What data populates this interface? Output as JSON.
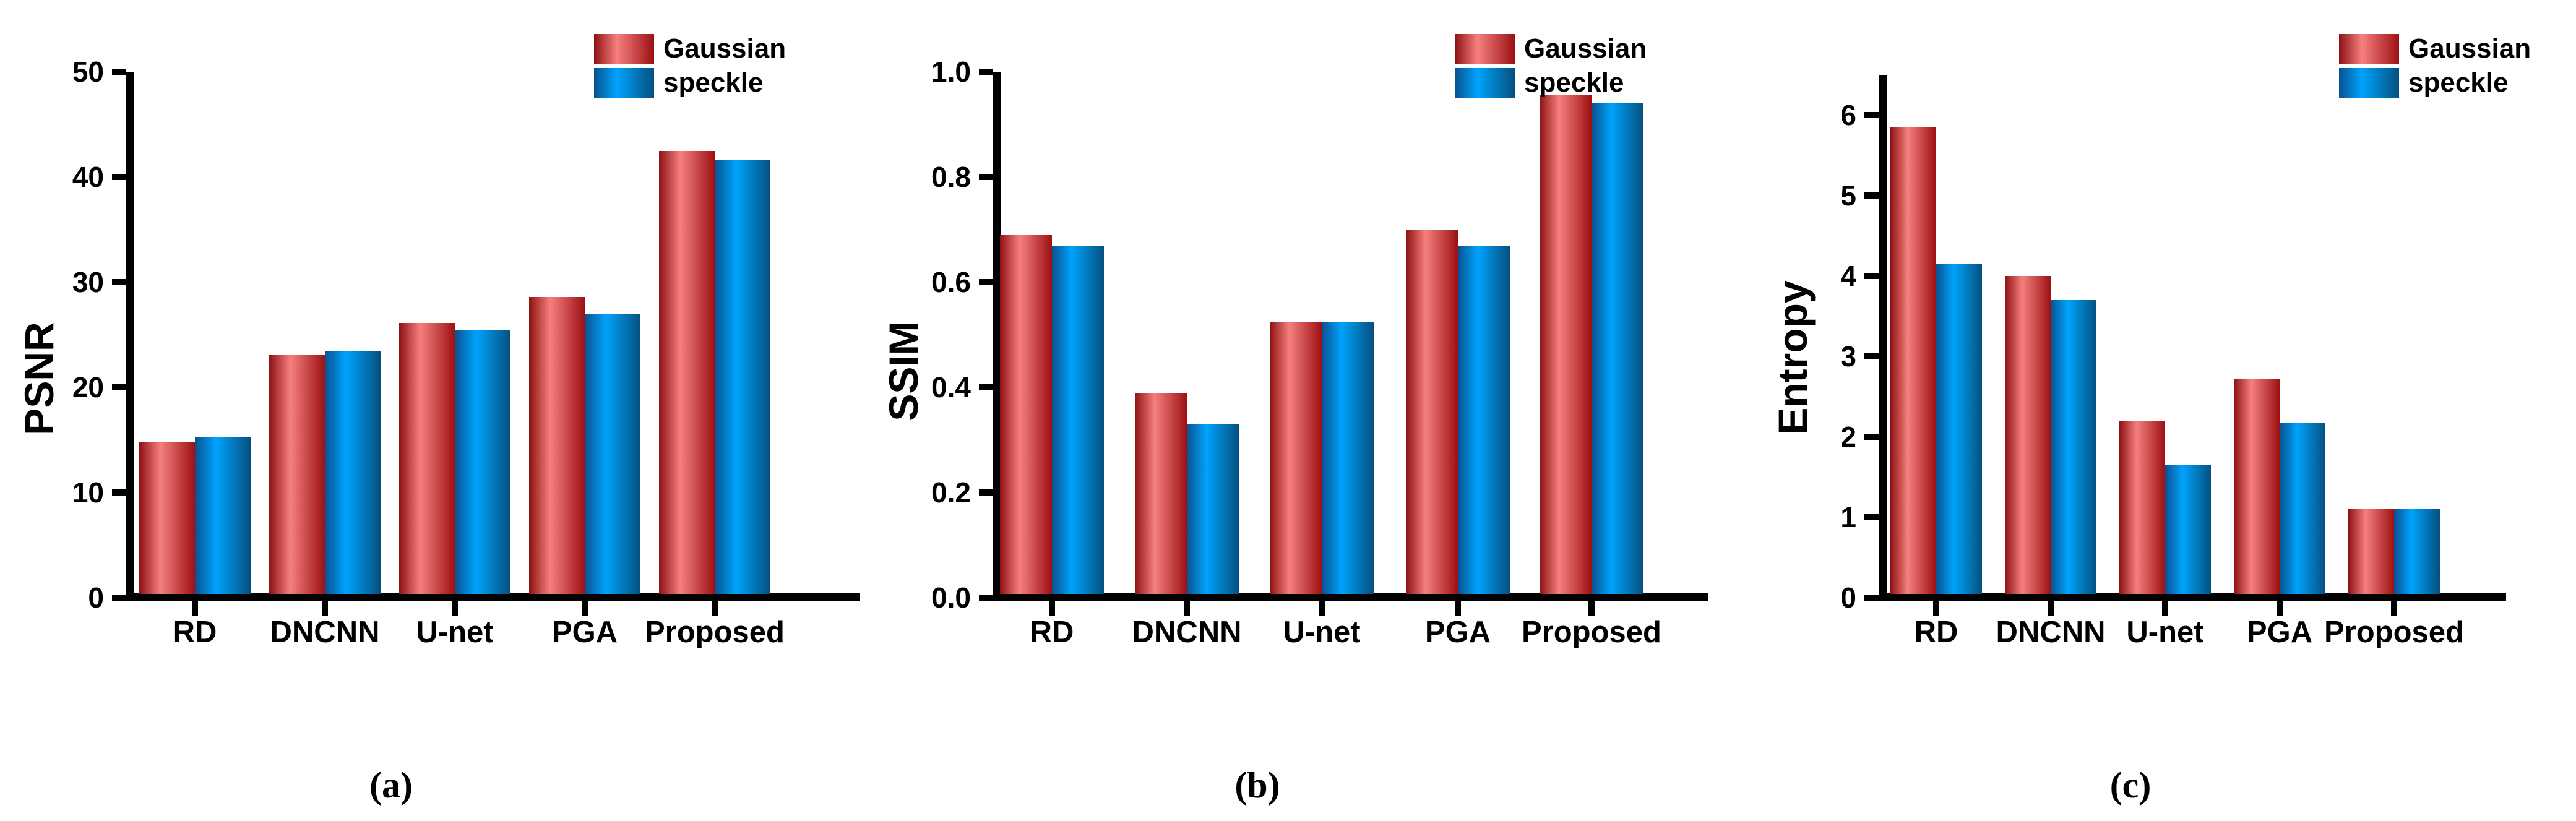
{
  "figure_legend": {
    "position": "top-right",
    "entries": [
      "Gaussian",
      "speckle"
    ]
  },
  "colors": {
    "gaussian_edge": "#8E1113",
    "gaussian_mid": "#F5807E",
    "gaussian_edge_right": "#9C1013",
    "speckle_edge": "#0A5190",
    "speckle_mid": "#00A3FC",
    "speckle_edge_right": "#05507F",
    "axis": "#000000",
    "text": "#000000",
    "background": "#FFFFFF"
  },
  "chart_data": [
    {
      "type": "bar",
      "caption": "(a)",
      "title": "",
      "xlabel": "",
      "ylabel": "PSNR",
      "categories": [
        "RD",
        "DNCNN",
        "U-net",
        "PGA",
        "Proposed"
      ],
      "ylim": [
        0,
        50
      ],
      "ytick_labels": [
        "0",
        "10",
        "20",
        "30",
        "40",
        "50"
      ],
      "grid": false,
      "legend_position": "top-right",
      "series": [
        {
          "name": "Gaussian",
          "values": [
            14.8,
            23.1,
            26.1,
            28.6,
            42.5
          ]
        },
        {
          "name": "speckle",
          "values": [
            15.3,
            23.4,
            25.4,
            27.0,
            41.6
          ]
        }
      ]
    },
    {
      "type": "bar",
      "caption": "(b)",
      "title": "",
      "xlabel": "",
      "ylabel": "SSIM",
      "categories": [
        "RD",
        "DNCNN",
        "U-net",
        "PGA",
        "Proposed"
      ],
      "ylim": [
        0,
        1.0
      ],
      "ytick_labels": [
        "0.0",
        "0.2",
        "0.4",
        "0.6",
        "0.8",
        "1.0"
      ],
      "grid": false,
      "legend_position": "top-right",
      "series": [
        {
          "name": "Gaussian",
          "values": [
            0.69,
            0.39,
            0.525,
            0.7,
            0.955
          ]
        },
        {
          "name": "speckle",
          "values": [
            0.67,
            0.33,
            0.525,
            0.67,
            0.94
          ]
        }
      ]
    },
    {
      "type": "bar",
      "caption": "(c)",
      "title": "",
      "xlabel": "",
      "ylabel": "Entropy",
      "categories": [
        "RD",
        "DNCNN",
        "U-net",
        "PGA",
        "Proposed"
      ],
      "ylim": [
        0,
        6.5
      ],
      "ytick_labels": [
        "0",
        "1",
        "2",
        "3",
        "4",
        "5",
        "6"
      ],
      "grid": false,
      "legend_position": "top-right",
      "series": [
        {
          "name": "Gaussian",
          "values": [
            5.85,
            4.0,
            2.2,
            2.72,
            1.1
          ]
        },
        {
          "name": "speckle",
          "values": [
            4.15,
            3.7,
            1.65,
            2.18,
            1.1
          ]
        }
      ]
    }
  ]
}
